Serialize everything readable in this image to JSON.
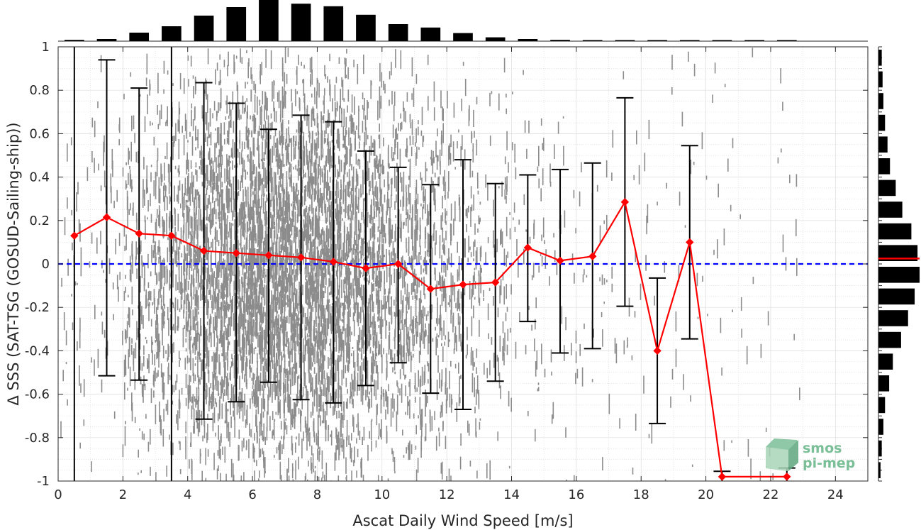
{
  "chart_data": {
    "type": "scatter",
    "xlabel": "Ascat Daily Wind Speed [m/s]",
    "ylabel": "Δ SSS (SAT-TSG (GOSUD-Sailing-ship))",
    "xlim": [
      0,
      25
    ],
    "ylim": [
      -1,
      1
    ],
    "xticks": [
      "0",
      "2",
      "4",
      "6",
      "8",
      "10",
      "12",
      "14",
      "16",
      "18",
      "20",
      "22",
      "24"
    ],
    "yticks": [
      "1",
      "0.8",
      "0.6",
      "0.4",
      "0.2",
      "0",
      "-0.2",
      "-0.4",
      "-0.6",
      "-0.8",
      "-1"
    ],
    "grid": true,
    "reference_line": {
      "y": 0,
      "color": "#0000ff",
      "style": "dashed"
    },
    "colors": {
      "scatter": "#808080",
      "mean": "#ff0000",
      "errorbar": "#000000",
      "histogram": "#000000"
    },
    "scatter_cloud": {
      "x_range": [
        0,
        22
      ],
      "y_range": [
        -1,
        1
      ],
      "density_peak_x": 6.5
    },
    "series": [
      {
        "type": "errorbar-line",
        "x": [
          0.5,
          1.5,
          2.5,
          3.5,
          4.5,
          5.5,
          6.5,
          7.5,
          8.5,
          9.5,
          10.5,
          11.5,
          12.5,
          13.5,
          14.5,
          15.5,
          16.5,
          17.5,
          18.5,
          19.5,
          20.5,
          22.5
        ],
        "mean": [
          0.13,
          0.215,
          0.14,
          0.13,
          0.06,
          0.05,
          0.04,
          0.03,
          0.01,
          -0.02,
          0.0,
          -0.115,
          -0.095,
          -0.085,
          0.075,
          0.015,
          0.035,
          0.285,
          -0.4,
          0.1,
          -0.98,
          -0.98
        ],
        "upper": [
          1.0,
          0.94,
          0.81,
          1.0,
          0.835,
          0.74,
          0.62,
          0.685,
          0.655,
          0.52,
          0.445,
          0.365,
          0.48,
          0.37,
          0.41,
          0.435,
          0.465,
          0.765,
          -0.065,
          0.545,
          -0.955,
          -0.94
        ],
        "lower": [
          -1.0,
          -0.515,
          -0.535,
          -1.0,
          -0.715,
          -0.635,
          -0.545,
          -0.625,
          -0.64,
          -0.56,
          -0.455,
          -0.595,
          -0.67,
          -0.54,
          -0.265,
          -0.41,
          -0.39,
          -0.195,
          -0.735,
          -0.345,
          -1.0,
          -1.0
        ]
      }
    ],
    "histogram_x": {
      "bin_centers": [
        0.5,
        1.5,
        2.5,
        3.5,
        4.5,
        5.5,
        6.5,
        7.5,
        8.5,
        9.5,
        10.5,
        11.5,
        12.5,
        13.5,
        14.5,
        15.5,
        16.5,
        17.5,
        18.5,
        19.5,
        20.5,
        21.5,
        22.5
      ],
      "relative_counts": [
        0.03,
        0.05,
        0.2,
        0.35,
        0.6,
        0.8,
        1.0,
        0.88,
        0.82,
        0.62,
        0.4,
        0.32,
        0.19,
        0.09,
        0.05,
        0.03,
        0.02,
        0.015,
        0.01,
        0.01,
        0.01,
        0.005,
        0.005
      ]
    },
    "histogram_y": {
      "bin_centers": [
        0.95,
        0.85,
        0.75,
        0.65,
        0.55,
        0.45,
        0.35,
        0.25,
        0.15,
        0.05,
        -0.05,
        -0.15,
        -0.25,
        -0.35,
        -0.45,
        -0.55,
        -0.65,
        -0.75,
        -0.85,
        -0.95
      ],
      "relative_counts": [
        0.08,
        0.1,
        0.12,
        0.16,
        0.22,
        0.28,
        0.42,
        0.58,
        0.8,
        0.95,
        1.0,
        0.88,
        0.72,
        0.55,
        0.35,
        0.26,
        0.16,
        0.12,
        0.08,
        0.05
      ],
      "median_line": {
        "y": 0.025,
        "color": "#ff0000"
      }
    }
  },
  "logo": {
    "line1": "smos",
    "line2": "pi-mep"
  }
}
